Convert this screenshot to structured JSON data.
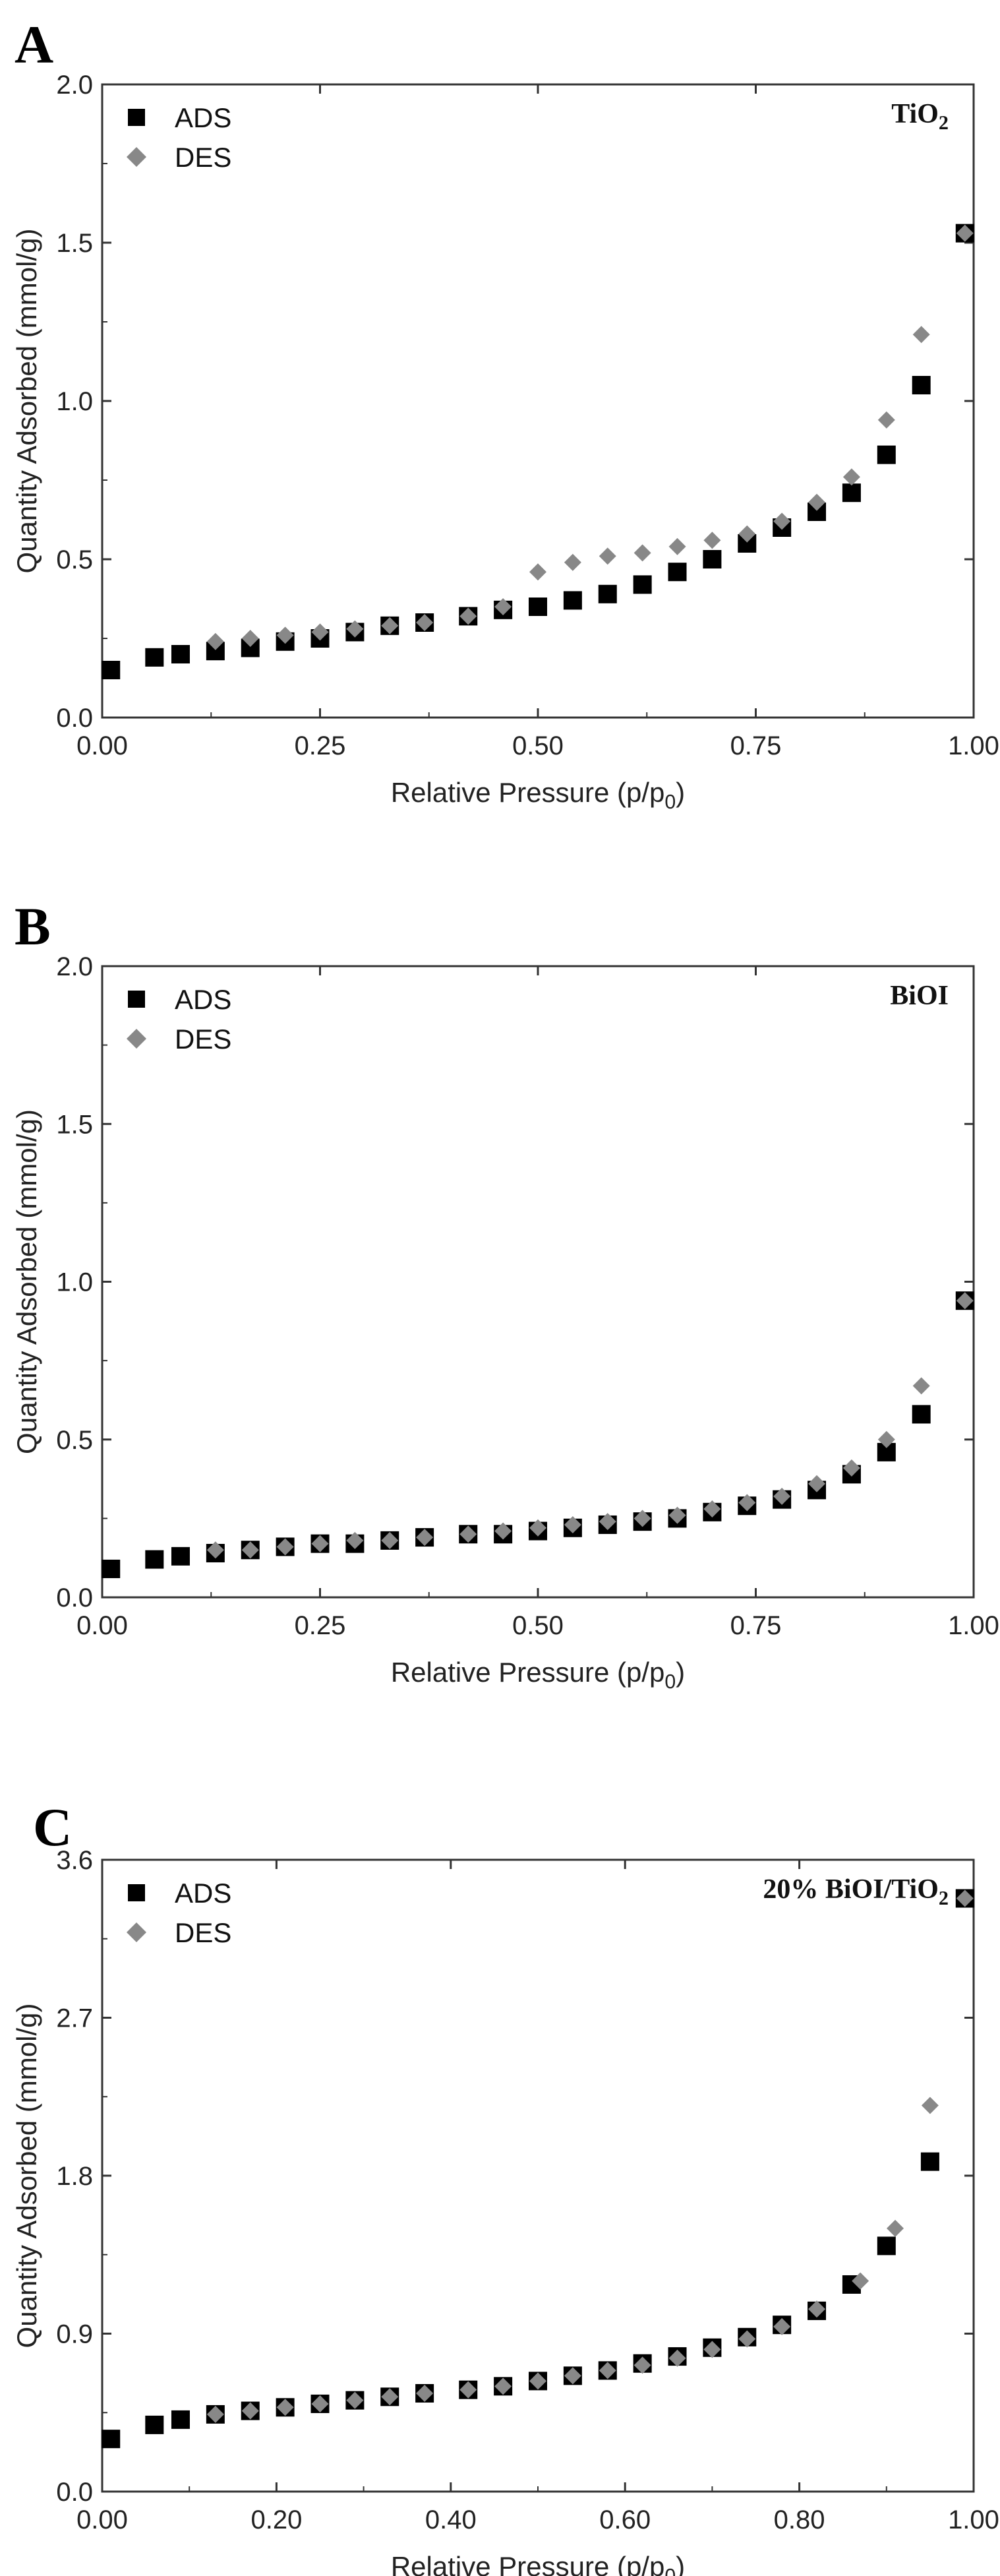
{
  "chart_data": [
    {
      "panel": "A",
      "type": "scatter",
      "annotation": "TiO2",
      "xlabel": "Relative Pressure (p/p0)",
      "ylabel": "Quantity Adsorbed (mmol/g)",
      "xlim": [
        0,
        1
      ],
      "ylim": [
        0,
        2
      ],
      "xticks": [
        "0.00",
        "0.25",
        "0.50",
        "0.75",
        "1.00"
      ],
      "yticks": [
        "0.0",
        "0.5",
        "1.0",
        "1.5",
        "2.0"
      ],
      "legend_position": "top-left",
      "series": [
        {
          "name": "ADS",
          "marker": "square",
          "color": "#000000",
          "x": [
            0.01,
            0.06,
            0.09,
            0.13,
            0.17,
            0.21,
            0.25,
            0.29,
            0.33,
            0.37,
            0.42,
            0.46,
            0.5,
            0.54,
            0.58,
            0.62,
            0.66,
            0.7,
            0.74,
            0.78,
            0.82,
            0.86,
            0.9,
            0.94,
            0.99
          ],
          "y": [
            0.15,
            0.19,
            0.2,
            0.21,
            0.22,
            0.24,
            0.25,
            0.27,
            0.29,
            0.3,
            0.32,
            0.34,
            0.35,
            0.37,
            0.39,
            0.42,
            0.46,
            0.5,
            0.55,
            0.6,
            0.65,
            0.71,
            0.83,
            1.05,
            1.53
          ]
        },
        {
          "name": "DES",
          "marker": "diamond",
          "color": "#888888",
          "x": [
            0.13,
            0.17,
            0.21,
            0.25,
            0.29,
            0.33,
            0.37,
            0.42,
            0.46,
            0.5,
            0.54,
            0.58,
            0.62,
            0.66,
            0.7,
            0.74,
            0.78,
            0.82,
            0.86,
            0.9,
            0.94,
            0.99
          ],
          "y": [
            0.24,
            0.25,
            0.26,
            0.27,
            0.28,
            0.29,
            0.3,
            0.32,
            0.35,
            0.46,
            0.49,
            0.51,
            0.52,
            0.54,
            0.56,
            0.58,
            0.62,
            0.68,
            0.76,
            0.94,
            1.21,
            1.53
          ]
        }
      ]
    },
    {
      "panel": "B",
      "type": "scatter",
      "annotation": "BiOI",
      "xlabel": "Relative Pressure (p/p0)",
      "ylabel": "Quantity Adsorbed (mmol/g)",
      "xlim": [
        0,
        1
      ],
      "ylim": [
        0,
        2
      ],
      "xticks": [
        "0.00",
        "0.25",
        "0.50",
        "0.75",
        "1.00"
      ],
      "yticks": [
        "0.0",
        "0.5",
        "1.0",
        "1.5",
        "2.0"
      ],
      "legend_position": "top-left",
      "series": [
        {
          "name": "ADS",
          "marker": "square",
          "color": "#000000",
          "x": [
            0.01,
            0.06,
            0.09,
            0.13,
            0.17,
            0.21,
            0.25,
            0.29,
            0.33,
            0.37,
            0.42,
            0.46,
            0.5,
            0.54,
            0.58,
            0.62,
            0.66,
            0.7,
            0.74,
            0.78,
            0.82,
            0.86,
            0.9,
            0.94,
            0.99
          ],
          "y": [
            0.09,
            0.12,
            0.13,
            0.14,
            0.15,
            0.16,
            0.17,
            0.17,
            0.18,
            0.19,
            0.2,
            0.2,
            0.21,
            0.22,
            0.23,
            0.24,
            0.25,
            0.27,
            0.29,
            0.31,
            0.34,
            0.39,
            0.46,
            0.58,
            0.94
          ]
        },
        {
          "name": "DES",
          "marker": "diamond",
          "color": "#888888",
          "x": [
            0.13,
            0.17,
            0.21,
            0.25,
            0.29,
            0.33,
            0.37,
            0.42,
            0.46,
            0.5,
            0.54,
            0.58,
            0.62,
            0.66,
            0.7,
            0.74,
            0.78,
            0.82,
            0.86,
            0.9,
            0.94,
            0.99
          ],
          "y": [
            0.15,
            0.15,
            0.16,
            0.17,
            0.18,
            0.18,
            0.19,
            0.2,
            0.21,
            0.22,
            0.23,
            0.24,
            0.25,
            0.26,
            0.28,
            0.3,
            0.32,
            0.36,
            0.41,
            0.5,
            0.67,
            0.94
          ]
        }
      ]
    },
    {
      "panel": "C",
      "type": "scatter",
      "annotation": "20% BiOI/TiO2",
      "xlabel": "Relative Pressure (p/p0)",
      "ylabel": "Quantity Adsorbed (mmol/g)",
      "xlim": [
        0,
        1
      ],
      "ylim": [
        0,
        3.6
      ],
      "xticks": [
        "0.00",
        "0.20",
        "0.40",
        "0.60",
        "0.80",
        "1.00"
      ],
      "yticks": [
        "0.0",
        "0.9",
        "1.8",
        "2.7",
        "3.6"
      ],
      "legend_position": "top-left",
      "series": [
        {
          "name": "ADS",
          "marker": "square",
          "color": "#000000",
          "x": [
            0.01,
            0.06,
            0.09,
            0.13,
            0.17,
            0.21,
            0.25,
            0.29,
            0.33,
            0.37,
            0.42,
            0.46,
            0.5,
            0.54,
            0.58,
            0.62,
            0.66,
            0.7,
            0.74,
            0.78,
            0.82,
            0.86,
            0.9,
            0.95,
            0.99
          ],
          "y": [
            0.3,
            0.38,
            0.41,
            0.44,
            0.46,
            0.48,
            0.5,
            0.52,
            0.54,
            0.56,
            0.58,
            0.6,
            0.63,
            0.66,
            0.69,
            0.73,
            0.77,
            0.82,
            0.88,
            0.95,
            1.03,
            1.18,
            1.4,
            1.88,
            3.38
          ]
        },
        {
          "name": "DES",
          "marker": "diamond",
          "color": "#888888",
          "x": [
            0.13,
            0.17,
            0.21,
            0.25,
            0.29,
            0.33,
            0.37,
            0.42,
            0.46,
            0.5,
            0.54,
            0.58,
            0.62,
            0.66,
            0.7,
            0.74,
            0.78,
            0.82,
            0.87,
            0.91,
            0.95,
            0.99
          ],
          "y": [
            0.44,
            0.46,
            0.48,
            0.5,
            0.52,
            0.54,
            0.56,
            0.58,
            0.6,
            0.63,
            0.66,
            0.69,
            0.72,
            0.76,
            0.81,
            0.87,
            0.94,
            1.04,
            1.2,
            1.5,
            2.2,
            3.38
          ]
        }
      ]
    }
  ]
}
